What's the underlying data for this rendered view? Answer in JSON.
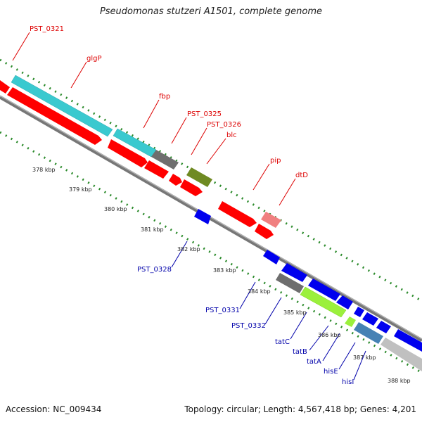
{
  "title": "Pseudomonas stutzeri A1501, complete genome",
  "footer": {
    "accession": "Accession: NC_009434",
    "summary": "Topology: circular; Length: 4,567,418 bp; Genes: 4,201"
  },
  "colors": {
    "forward_label": "#dd0000",
    "reverse_label": "#0000aa",
    "backbone": "#8a8a8a",
    "tick": "#2a8a2a"
  },
  "forward_genes": [
    {
      "label": "PST_0321",
      "color": "#ff0000"
    },
    {
      "label": "glgP",
      "color": "#3ac9cf"
    },
    {
      "label": "fbp",
      "color": "#3ac9cf"
    },
    {
      "label": "PST_0325",
      "color": "#6e6e6e"
    },
    {
      "label": "PST_0326",
      "color": "#6f8a22"
    },
    {
      "label": "blc",
      "color": "#ff0000"
    },
    {
      "label": "pip",
      "color": "#f08080"
    },
    {
      "label": "dtD",
      "color": "#ff0000"
    }
  ],
  "reverse_genes": [
    {
      "label": "PST_0328",
      "color": "#0000ee"
    },
    {
      "label": "PST_0331",
      "color": "#0000ee"
    },
    {
      "label": "PST_0332",
      "color": "#6e6e6e"
    },
    {
      "label": "tatC",
      "color": "#9bf03c"
    },
    {
      "label": "tatB",
      "color": "#0000ee"
    },
    {
      "label": "tatA",
      "color": "#0000ee"
    },
    {
      "label": "hisE",
      "color": "#4682b4"
    },
    {
      "label": "hisI",
      "color": "#c0c0c0"
    }
  ],
  "kbp_ticks": [
    "378 kbp",
    "379 kbp",
    "380 kbp",
    "381 kbp",
    "382 kbp",
    "383 kbp",
    "384 kbp",
    "385 kbp",
    "386 kbp",
    "387 kbp",
    "388 kbp"
  ]
}
